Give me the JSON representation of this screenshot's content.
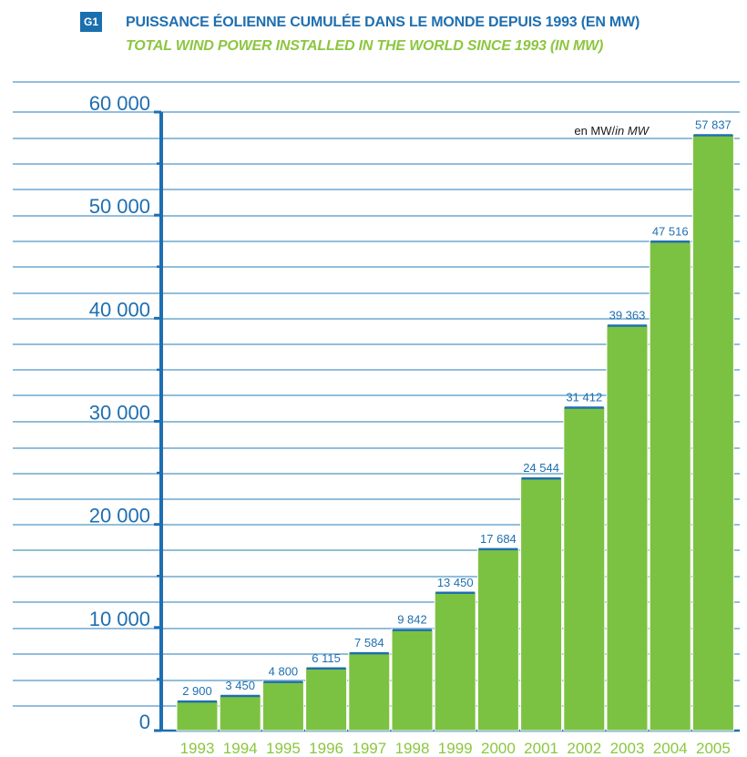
{
  "header": {
    "badge": "G1",
    "title_fr": "PUISSANCE ÉOLIENNE CUMULÉE DANS LE MONDE DEPUIS 1993 (EN MW)",
    "title_en": "TOTAL WIND POWER INSTALLED IN THE WORLD SINCE 1993 (IN MW)"
  },
  "colors": {
    "blue": "#1f6fb0",
    "green": "#7cc242",
    "grid": "#6fa8cf",
    "title_green": "#8cc63f",
    "badge_bg": "#1a6fae"
  },
  "chart_data": {
    "type": "bar",
    "title": "PUISSANCE ÉOLIENNE CUMULÉE DANS LE MONDE DEPUIS 1993 (EN MW)",
    "subtitle": "TOTAL WIND POWER INSTALLED IN THE WORLD SINCE 1993 (IN MW)",
    "unit_label_fr": "en MW/",
    "unit_label_en": "in MW",
    "categories": [
      "1993",
      "1994",
      "1995",
      "1996",
      "1997",
      "1998",
      "1999",
      "2000",
      "2001",
      "2002",
      "2003",
      "2004",
      "2005"
    ],
    "values": [
      2900,
      3450,
      4800,
      6115,
      7584,
      9842,
      13450,
      17684,
      24544,
      31412,
      39363,
      47516,
      57837
    ],
    "value_labels": [
      "2 900",
      "3 450",
      "4 800",
      "6 115",
      "7 584",
      "9 842",
      "13 450",
      "17 684",
      "24 544",
      "31 412",
      "39 363",
      "47 516",
      "57 837"
    ],
    "yticks": [
      0,
      10000,
      20000,
      30000,
      40000,
      50000,
      60000
    ],
    "ytick_labels": [
      "0",
      "10 000",
      "20 000",
      "30 000",
      "40 000",
      "50 000",
      "60 000"
    ],
    "ylim": [
      0,
      60000
    ],
    "grid": true
  }
}
